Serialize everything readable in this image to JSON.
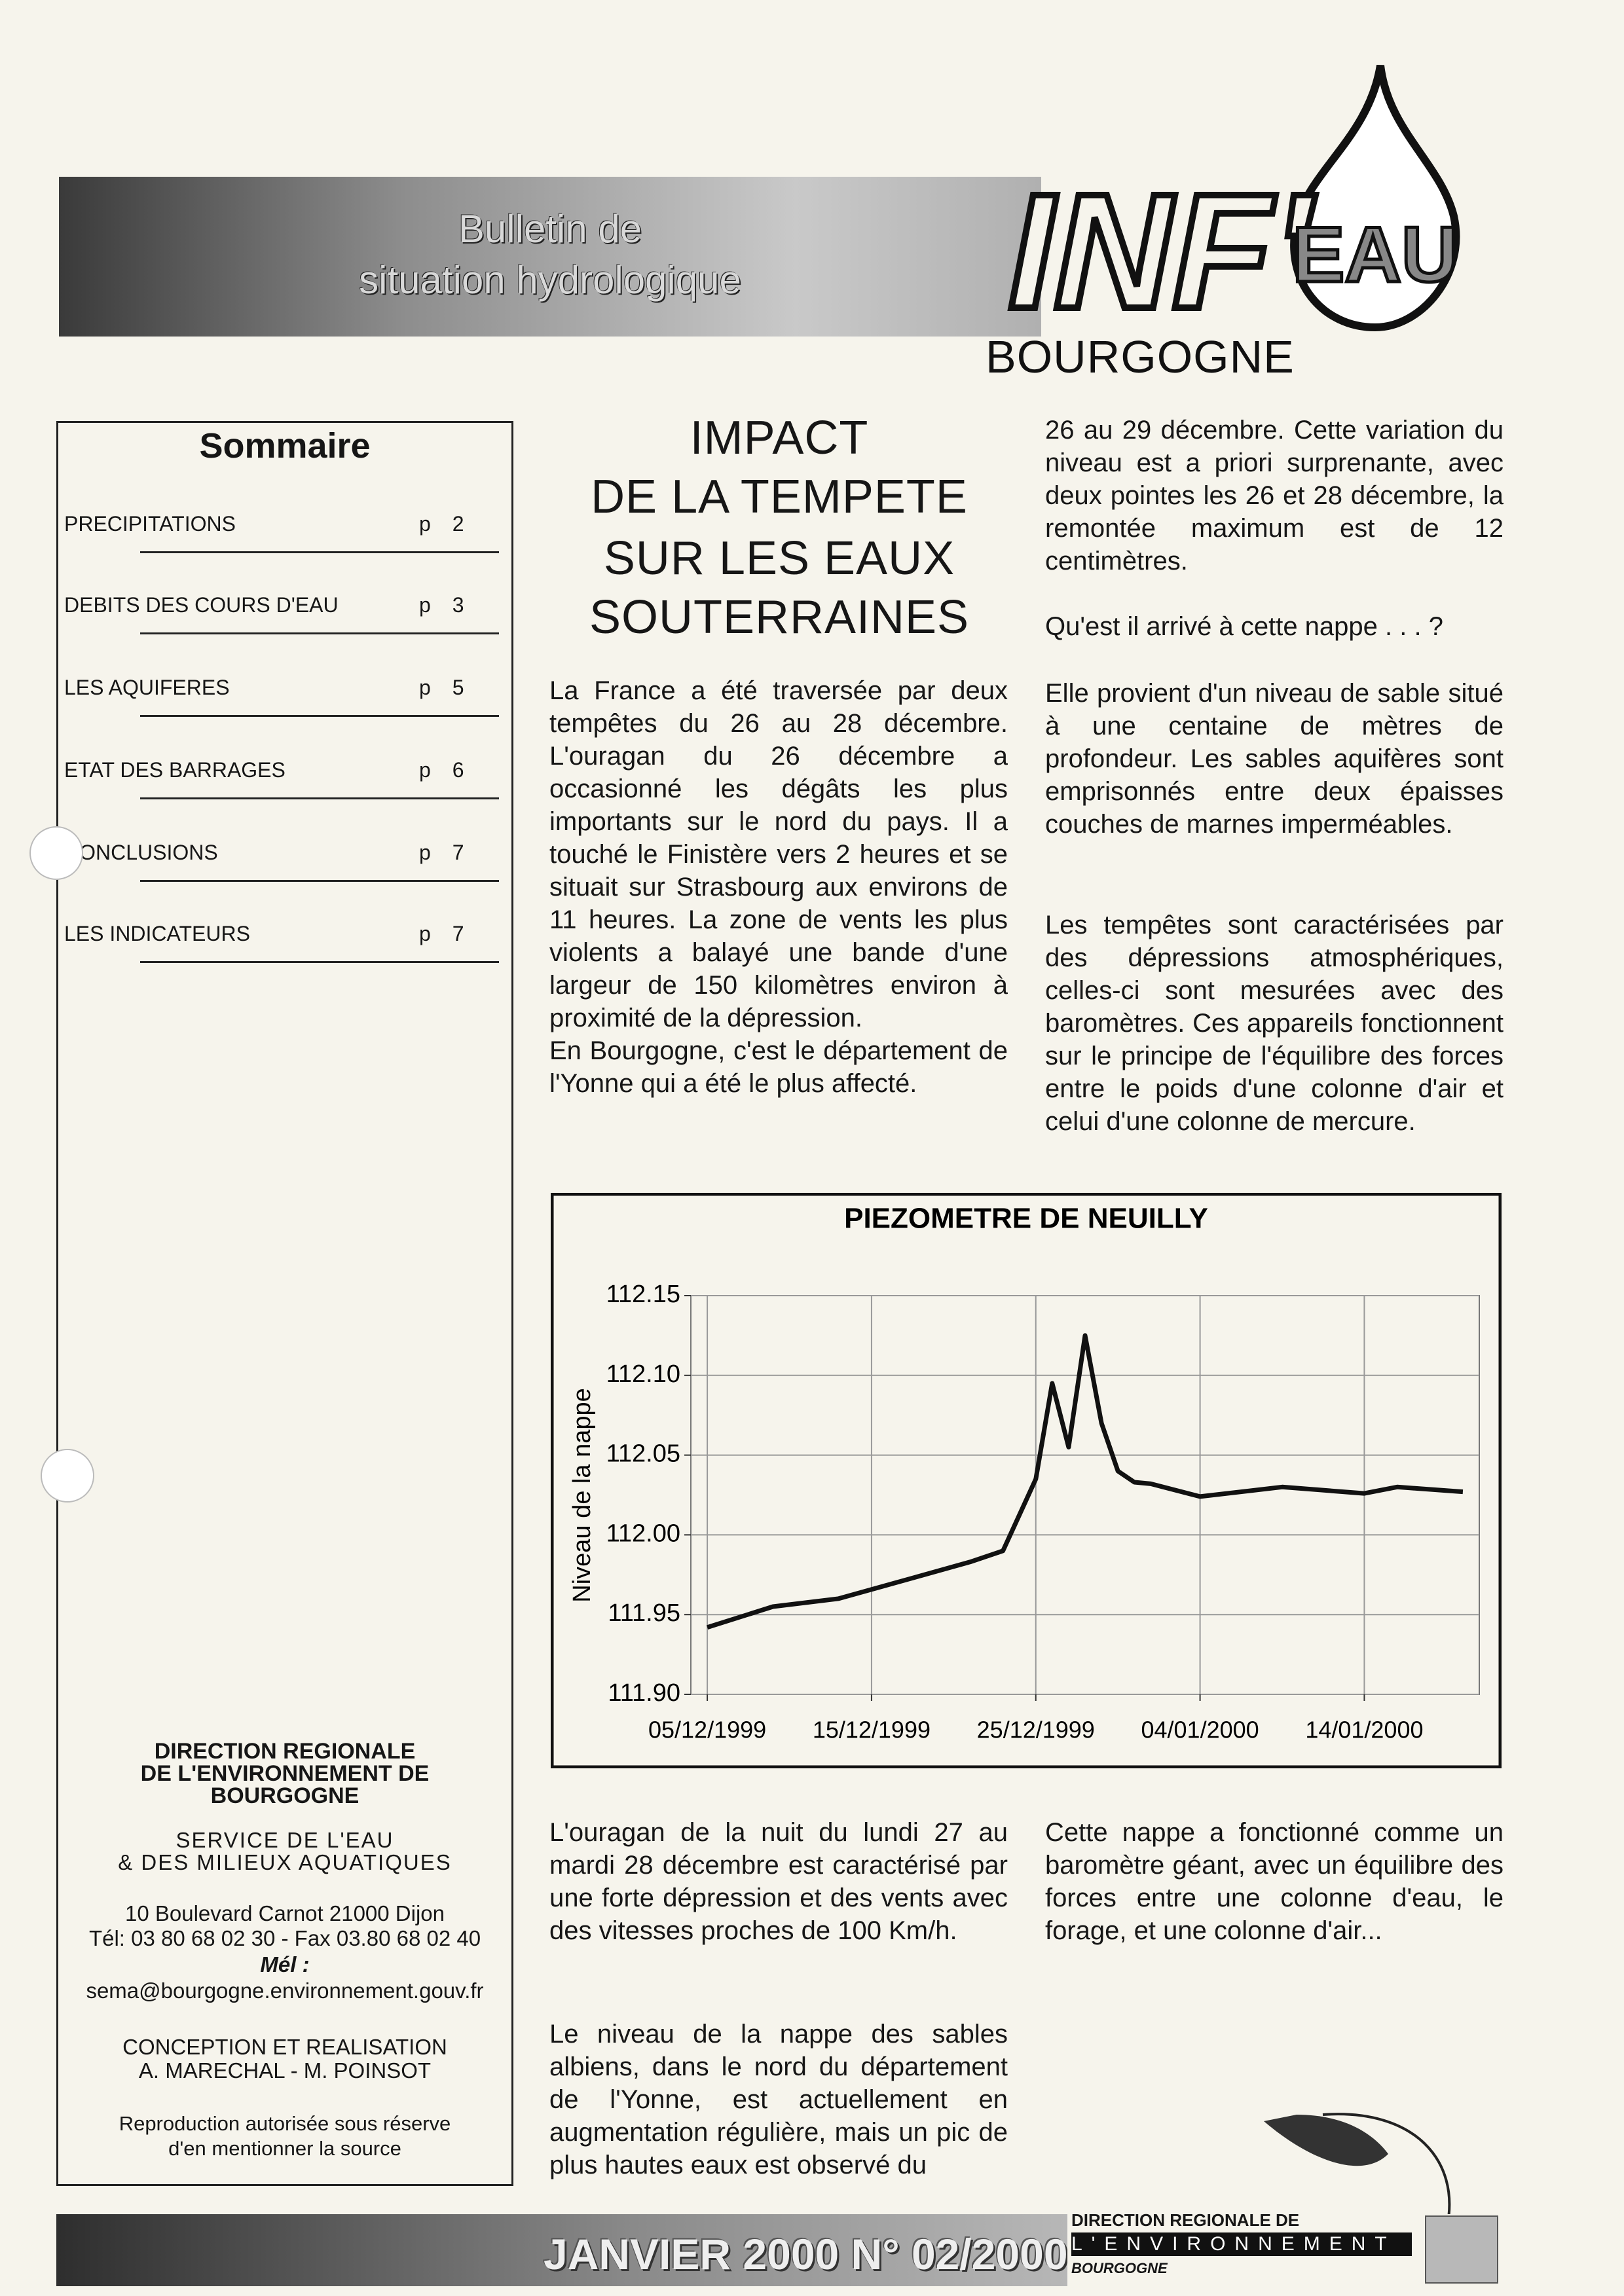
{
  "header": {
    "banner_lines": [
      "Bulletin de",
      "situation hydrologique"
    ],
    "logo_left": "INF'",
    "logo_drop": "EAU",
    "region": "BOURGOGNE"
  },
  "sommaire": {
    "title": "Sommaire",
    "items": [
      {
        "label": "PRECIPITATIONS",
        "page": "p 2"
      },
      {
        "label": "DEBITS DES COURS D'EAU",
        "page": "p 3"
      },
      {
        "label": "LES AQUIFERES",
        "page": "p 5"
      },
      {
        "label": "ETAT DES BARRAGES",
        "page": "p 6"
      },
      {
        "label": "CONCLUSIONS",
        "page": "p 7"
      },
      {
        "label": "LES INDICATEURS",
        "page": "p 7"
      }
    ],
    "footer": [
      "DIRECTION REGIONALE",
      "DE L'ENVIRONNEMENT DE",
      "BOURGOGNE",
      "SERVICE DE L'EAU",
      "& DES MILIEUX AQUATIQUES",
      "10 Boulevard Carnot 21000 Dijon",
      "Tél: 03 80 68 02 30 - Fax 03.80 68 02 40",
      "Mél :",
      "sema@bourgogne.environnement.gouv.fr",
      "CONCEPTION ET REALISATION",
      "A. MARECHAL - M. POINSOT",
      "Reproduction autorisée sous réserve",
      "d'en mentionner la source"
    ]
  },
  "article": {
    "title_lines": [
      "IMPACT",
      "DE LA TEMPETE",
      "SUR LES EAUX",
      "SOUTERRAINES"
    ],
    "column1": [
      "La France a été traversée par deux tempêtes du 26 au 28 décembre. L'ouragan du 26 décembre a occasionné les dégâts les plus importants sur le nord du pays. Il a touché le Finistère vers 2 heures et se situait sur Strasbourg aux environs de 11 heures. La zone de vents les plus violents a balayé une bande d'une largeur de 150 kilomètres environ à proximité de la dépression.",
      "En Bourgogne, c'est le département de l'Yonne qui a été le plus affecté."
    ],
    "column2": [
      "26 au 29 décembre. Cette variation du niveau est a priori surprenante, avec deux pointes les 26 et 28 décembre, la remontée maximum est de 12 centimètres.",
      "Qu'est il arrivé à cette nappe . . . ?",
      "Elle provient d'un niveau de sable situé à une centaine de mètres de profondeur. Les sables aquifères sont emprisonnés entre deux épaisses couches de marnes imperméables.",
      "Les tempêtes sont caractérisées par des dépressions atmosphériques, celles-ci sont mesurées avec des baromètres. Ces appareils fonctionnent sur le principe de l'équilibre des forces entre le poids d'une colonne d'air et celui d'une colonne de mercure."
    ],
    "column3": [
      "L'ouragan de la nuit du lundi 27 au mardi 28 décembre est caractérisé par une forte dépression et des vents avec des vitesses proches de 100 Km/h.",
      "Le niveau de la nappe des sables albiens, dans le nord du département de l'Yonne, est actuellement en augmentation régulière, mais un pic de plus hautes eaux est observé du"
    ],
    "column4": [
      "Cette nappe a fonctionné comme un baromètre géant, avec un équilibre des forces entre une colonne d'eau, le forage, et une colonne d'air..."
    ]
  },
  "chart_data": {
    "type": "line",
    "title": "PIEZOMETRE DE NEUILLY",
    "y_label": "Niveau de la nappe",
    "x": [
      "05/12/1999",
      "09/12/1999",
      "13/12/1999",
      "21/12/1999",
      "23/12/1999",
      "25/12/1999",
      "26/12/1999",
      "27/12/1999",
      "28/12/1999",
      "29/12/1999",
      "30/12/1999",
      "31/12/1999",
      "01/01/2000",
      "04/01/2000",
      "09/01/2000",
      "14/01/2000",
      "16/01/2000",
      "20/01/2000"
    ],
    "values": [
      111.942,
      111.955,
      111.96,
      111.983,
      111.99,
      112.035,
      112.095,
      112.055,
      112.125,
      112.07,
      112.04,
      112.033,
      112.032,
      112.024,
      112.03,
      112.026,
      112.03,
      112.027
    ],
    "color": "#111111",
    "xlim": [
      "04/12/1999",
      "21/01/2000"
    ],
    "xticks": [
      "05/12/1999",
      "15/12/1999",
      "25/12/1999",
      "04/01/2000",
      "14/01/2000"
    ],
    "ylim": [
      111.9,
      112.15
    ],
    "yticks": [
      {
        "value": 111.9,
        "label": "111.90"
      },
      111.95,
      {
        "value": 112,
        "label": "112.00"
      },
      112.05,
      {
        "value": 112.1,
        "label": "112.10"
      },
      112.15
    ],
    "grid": true
  },
  "footer": {
    "issue": "JANVIER 2000 N° 02/2000",
    "logo_lines": [
      "DIRECTION REGIONALE DE",
      "L'ENVIRONNEMENT",
      "BOURGOGNE"
    ]
  }
}
